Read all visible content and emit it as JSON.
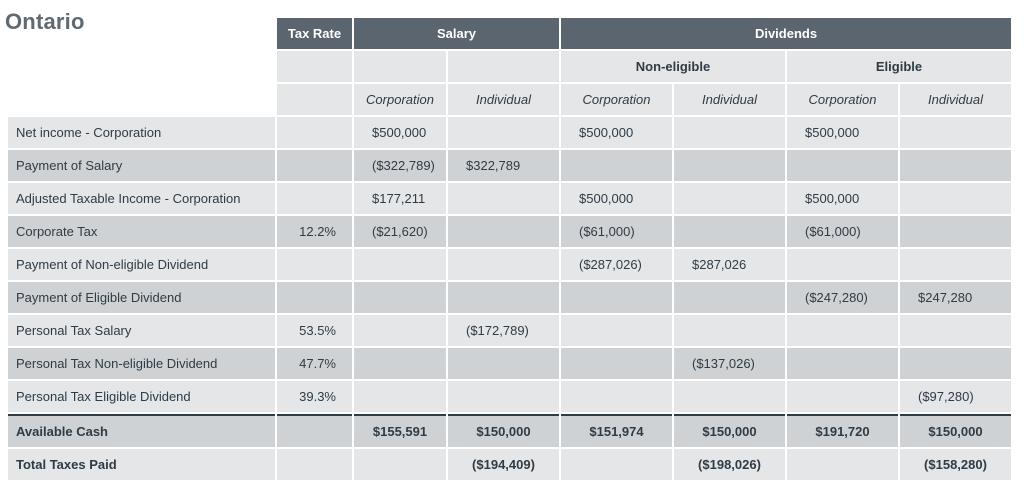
{
  "title": "Ontario",
  "header": {
    "tax_rate": "Tax Rate",
    "salary": "Salary",
    "dividends": "Dividends",
    "non_eligible": "Non-eligible",
    "eligible": "Eligible",
    "sub": [
      "Corporation",
      "Individual",
      "Corporation",
      "Individual",
      "Corporation",
      "Individual"
    ]
  },
  "rows": [
    {
      "label": "Net income - Corporation",
      "rate": "",
      "cells": [
        "$500,000",
        "",
        "$500,000",
        "",
        "$500,000",
        ""
      ]
    },
    {
      "label": "Payment of Salary",
      "rate": "",
      "cells": [
        "($322,789)",
        "$322,789",
        "",
        "",
        "",
        ""
      ]
    },
    {
      "label": "Adjusted Taxable Income - Corporation",
      "rate": "",
      "cells": [
        "$177,211",
        "",
        "$500,000",
        "",
        "$500,000",
        ""
      ]
    },
    {
      "label": "Corporate Tax",
      "rate": "12.2%",
      "cells": [
        "($21,620)",
        "",
        "($61,000)",
        "",
        "($61,000)",
        ""
      ]
    },
    {
      "label": "Payment of Non-eligible Dividend",
      "rate": "",
      "cells": [
        "",
        "",
        "($287,026)",
        "$287,026",
        "",
        ""
      ]
    },
    {
      "label": "Payment of Eligible Dividend",
      "rate": "",
      "cells": [
        "",
        "",
        "",
        "",
        "($247,280)",
        "$247,280"
      ]
    },
    {
      "label": "Personal Tax Salary",
      "rate": "53.5%",
      "cells": [
        "",
        "($172,789)",
        "",
        "",
        "",
        ""
      ]
    },
    {
      "label": "Personal Tax Non-eligible Dividend",
      "rate": "47.7%",
      "cells": [
        "",
        "",
        "",
        "($137,026)",
        "",
        ""
      ]
    },
    {
      "label": "Personal Tax Eligible Dividend",
      "rate": "39.3%",
      "cells": [
        "",
        "",
        "",
        "",
        "",
        "($97,280)"
      ]
    }
  ],
  "totals": [
    {
      "label": "Available Cash",
      "rate": "",
      "cells": [
        "$155,591",
        "$150,000",
        "$151,974",
        "$150,000",
        "$191,720",
        "$150,000"
      ]
    },
    {
      "label": "Total Taxes Paid",
      "rate": "",
      "cells": [
        "",
        "($194,409)",
        "",
        "($198,026)",
        "",
        "($158,280)"
      ]
    }
  ]
}
